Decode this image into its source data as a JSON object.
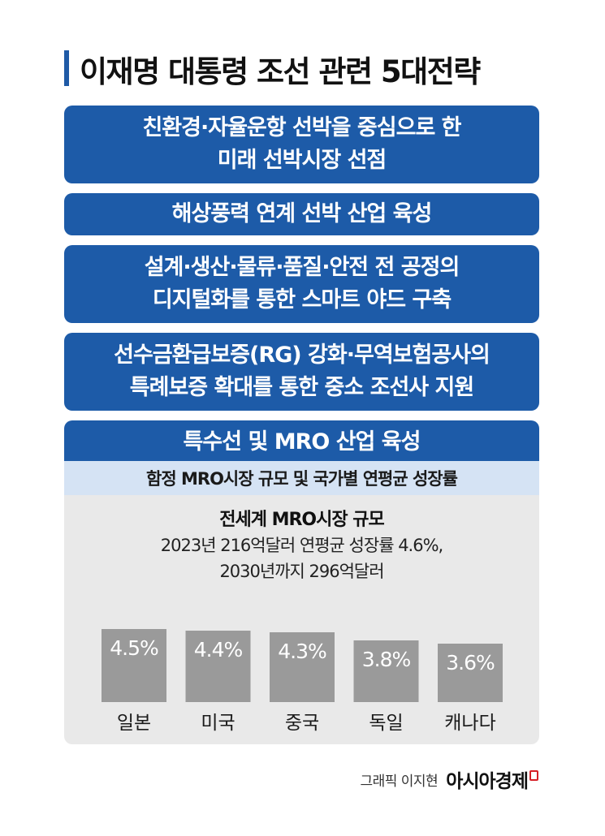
{
  "title": "이재명 대통령 조선 관련 5대전략",
  "strategies": [
    {
      "line1": "친환경·자율운항 선박을 중심으로 한",
      "line2": "미래 선박시장 선점"
    },
    {
      "line1": "해상풍력 연계 선박 산업 육성",
      "line2": ""
    },
    {
      "line1": "설계·생산·물류·품질·안전 전 공정의",
      "line2": "디지털화를 통한 스마트 야드 구축"
    },
    {
      "line1": "선수금환급보증(RG) 강화·무역보험공사의",
      "line2": "특례보증 확대를 통한 중소 조선사 지원"
    },
    {
      "line1": "특수선 및 MRO 산업 육성",
      "line2": ""
    }
  ],
  "chart_section": {
    "header": "함정 MRO시장 규모 및 국가별 연평균 성장률",
    "title": "전세계 MRO시장 규모",
    "subtitle_line1": "2023년 216억달러 연평균 성장률 4.6%,",
    "subtitle_line2": "2030년까지 296억달러"
  },
  "chart_data": {
    "type": "bar",
    "categories": [
      "일본",
      "미국",
      "중국",
      "독일",
      "캐나다"
    ],
    "values": [
      4.5,
      4.4,
      4.3,
      3.8,
      3.6
    ],
    "value_labels": [
      "4.5%",
      "4.4%",
      "4.3%",
      "3.8%",
      "3.6%"
    ],
    "unit": "%",
    "bar_color": "#9a9a9a",
    "grid": false,
    "legend": "none"
  },
  "credit": {
    "text": "그래픽 이지현",
    "brand": "아시아경제"
  },
  "colors": {
    "accent": "#1d5ba8",
    "subheader_bg": "#d5e3f4",
    "panel_bg": "#e9e9e9",
    "brand_mark": "#d61f26"
  }
}
